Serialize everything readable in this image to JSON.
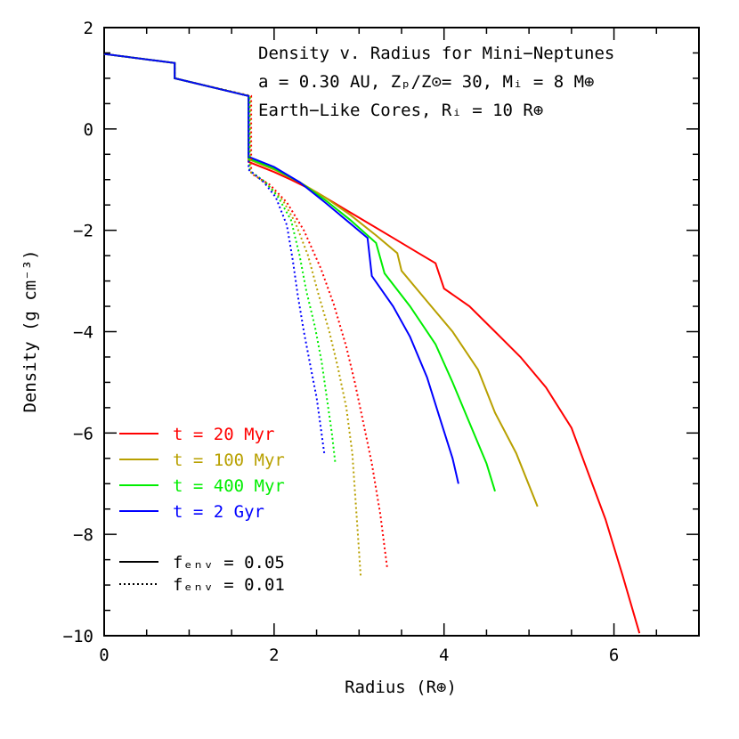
{
  "chart_data": {
    "type": "line",
    "title_lines": [
      "Density v. Radius for Mini−Neptunes",
      "a = 0.30 AU, Zₚ/Z⊙= 30, Mᵢ = 8 M⊕",
      "Earth−Like Cores, Rᵢ = 10 R⊕"
    ],
    "xlabel": "Radius (R⊕)",
    "ylabel": "Density (g cm⁻³)",
    "xlim": [
      0,
      7
    ],
    "ylim": [
      -10,
      2
    ],
    "x_ticks": [
      0,
      2,
      4,
      6
    ],
    "y_ticks": [
      -10,
      -8,
      -6,
      -4,
      -2,
      0,
      2
    ],
    "x_tick_labels": [
      "0",
      "2",
      "4",
      "6"
    ],
    "y_tick_labels": [
      "−10",
      "−8",
      "−6",
      "−4",
      "−2",
      "0",
      "2"
    ],
    "legend_time": [
      {
        "label": "t = 20 Myr",
        "color": "#ff0000"
      },
      {
        "label": "t = 100 Myr",
        "color": "#b8a000"
      },
      {
        "label": "t = 400 Myr",
        "color": "#00ee00"
      },
      {
        "label": "t = 2 Gyr",
        "color": "#0000ff"
      }
    ],
    "legend_style": [
      {
        "label": "fₑₙᵥ = 0.05",
        "style": "solid"
      },
      {
        "label": "fₑₙᵥ = 0.01",
        "style": "dotted"
      }
    ],
    "series": [
      {
        "color": "#ff0000",
        "style": "solid",
        "x": [
          0,
          0.83,
          0.83,
          1.7,
          1.7,
          2.0,
          2.2,
          2.5,
          2.8,
          3.1,
          3.4,
          3.7,
          3.9,
          4.0,
          4.3,
          4.6,
          4.9,
          5.2,
          5.5,
          5.7,
          5.9,
          6.1,
          6.3
        ],
        "y": [
          1.48,
          1.3,
          1.0,
          0.65,
          -0.65,
          -0.85,
          -1.0,
          -1.25,
          -1.55,
          -1.85,
          -2.15,
          -2.45,
          -2.65,
          -3.15,
          -3.5,
          -4.0,
          -4.5,
          -5.1,
          -5.9,
          -6.8,
          -7.7,
          -8.8,
          -9.95
        ]
      },
      {
        "color": "#b8a000",
        "style": "solid",
        "x": [
          0,
          0.83,
          0.83,
          1.7,
          1.7,
          2.0,
          2.3,
          2.6,
          2.9,
          3.2,
          3.45,
          3.5,
          3.8,
          4.1,
          4.4,
          4.6,
          4.85,
          5.1
        ],
        "y": [
          1.48,
          1.3,
          1.0,
          0.65,
          -0.6,
          -0.8,
          -1.05,
          -1.35,
          -1.7,
          -2.1,
          -2.45,
          -2.8,
          -3.4,
          -4.0,
          -4.75,
          -5.6,
          -6.4,
          -7.45
        ]
      },
      {
        "color": "#00ee00",
        "style": "solid",
        "x": [
          0,
          0.83,
          0.83,
          1.7,
          1.7,
          2.0,
          2.3,
          2.6,
          2.9,
          3.2,
          3.3,
          3.6,
          3.9,
          4.1,
          4.3,
          4.5,
          4.6
        ],
        "y": [
          1.48,
          1.3,
          1.0,
          0.65,
          -0.58,
          -0.78,
          -1.05,
          -1.4,
          -1.8,
          -2.25,
          -2.85,
          -3.5,
          -4.25,
          -5.0,
          -5.8,
          -6.6,
          -7.15
        ]
      },
      {
        "color": "#0000ff",
        "style": "solid",
        "x": [
          0,
          0.83,
          0.83,
          1.7,
          1.7,
          2.0,
          2.3,
          2.6,
          2.85,
          3.1,
          3.15,
          3.4,
          3.6,
          3.8,
          3.95,
          4.1,
          4.17
        ],
        "y": [
          1.48,
          1.3,
          1.0,
          0.65,
          -0.55,
          -0.75,
          -1.05,
          -1.45,
          -1.8,
          -2.15,
          -2.9,
          -3.5,
          -4.1,
          -4.9,
          -5.7,
          -6.5,
          -7.0
        ]
      },
      {
        "color": "#ff0000",
        "style": "dotted",
        "x": [
          0,
          0.83,
          0.83,
          1.73,
          1.73,
          1.95,
          2.15,
          2.35,
          2.55,
          2.7,
          2.85,
          2.95,
          3.05,
          3.15,
          3.25,
          3.33
        ],
        "y": [
          1.48,
          1.3,
          1.0,
          0.65,
          -0.88,
          -1.1,
          -1.45,
          -2.0,
          -2.75,
          -3.45,
          -4.3,
          -5.0,
          -5.8,
          -6.6,
          -7.6,
          -8.65
        ]
      },
      {
        "color": "#b8a000",
        "style": "dotted",
        "x": [
          0,
          0.83,
          0.83,
          1.72,
          1.72,
          1.92,
          2.1,
          2.25,
          2.4,
          2.52,
          2.65,
          2.75,
          2.85,
          2.92,
          2.97,
          3.02
        ],
        "y": [
          1.48,
          1.3,
          1.0,
          0.65,
          -0.85,
          -1.1,
          -1.4,
          -1.85,
          -2.5,
          -3.25,
          -4.0,
          -4.7,
          -5.5,
          -6.4,
          -7.6,
          -8.85
        ]
      },
      {
        "color": "#00ee00",
        "style": "dotted",
        "x": [
          0,
          0.83,
          0.83,
          1.71,
          1.71,
          1.9,
          2.05,
          2.2,
          2.3,
          2.38,
          2.48,
          2.56,
          2.62,
          2.68,
          2.72
        ],
        "y": [
          1.48,
          1.3,
          1.0,
          0.65,
          -0.82,
          -1.05,
          -1.35,
          -1.8,
          -2.5,
          -3.2,
          -3.9,
          -4.6,
          -5.3,
          -6.0,
          -6.6
        ]
      },
      {
        "color": "#0000ff",
        "style": "dotted",
        "x": [
          0,
          0.83,
          0.83,
          1.7,
          1.7,
          1.88,
          2.02,
          2.15,
          2.22,
          2.28,
          2.35,
          2.43,
          2.5,
          2.55,
          2.59
        ],
        "y": [
          1.48,
          1.3,
          1.0,
          0.65,
          -0.8,
          -1.05,
          -1.35,
          -1.9,
          -2.6,
          -3.3,
          -4.0,
          -4.7,
          -5.3,
          -5.9,
          -6.4
        ]
      }
    ]
  }
}
